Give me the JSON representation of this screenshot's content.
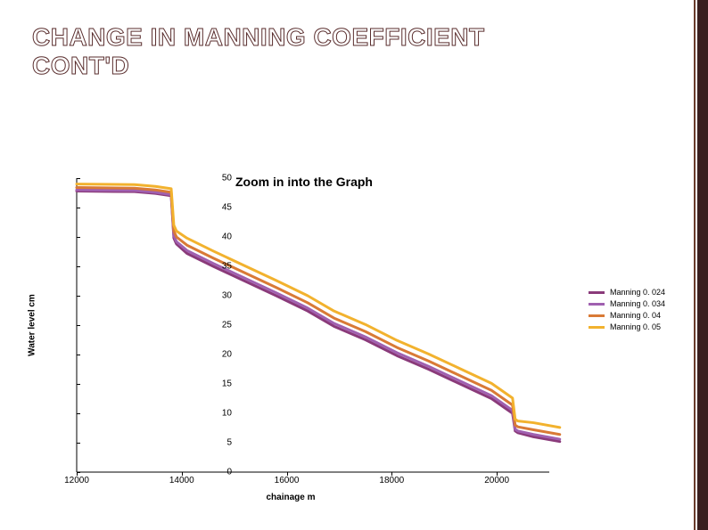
{
  "title_line1": "CHANGE IN MANNING COEFFICIENT",
  "title_line2": "CONT'D",
  "stripe": {
    "dark": "#3a1f1f",
    "thin": "#6a3b2b"
  },
  "chart": {
    "type": "line",
    "zoom_label": "Zoom in into the Graph",
    "xlabel": "chainage  m",
    "ylabel": "Water level  cm",
    "xlim": [
      12000,
      21000
    ],
    "ylim": [
      0,
      50
    ],
    "ytick_step": 5,
    "xtick_step": 2000,
    "background_color": "#ffffff",
    "axis_color": "#000000",
    "tick_fontsize": 10,
    "label_fontsize": 10,
    "zoom_fontsize": 14,
    "line_width": 3,
    "series": [
      {
        "name": "Manning 0. 024",
        "color": "#8a3a7a",
        "x": [
          12000,
          13100,
          13500,
          13800,
          13850,
          13900,
          14100,
          14600,
          15200,
          15800,
          16400,
          16900,
          17500,
          18100,
          18700,
          19300,
          19900,
          20300,
          20350,
          20400,
          20700,
          21200
        ],
        "y": [
          47.8,
          47.7,
          47.4,
          47.0,
          39.8,
          38.8,
          37.2,
          35.0,
          32.5,
          30.0,
          27.4,
          24.8,
          22.5,
          19.8,
          17.5,
          15.0,
          12.5,
          10.0,
          7.0,
          6.7,
          6.0,
          5.2
        ]
      },
      {
        "name": "Manning 0. 034",
        "color": "#a060b0",
        "x": [
          12000,
          13100,
          13500,
          13800,
          13850,
          13900,
          14100,
          14600,
          15200,
          15800,
          16400,
          16900,
          17500,
          18100,
          18700,
          19300,
          19900,
          20300,
          20350,
          20400,
          20700,
          21200
        ],
        "y": [
          48.0,
          47.9,
          47.6,
          47.2,
          40.2,
          39.2,
          37.7,
          35.5,
          33.0,
          30.5,
          27.9,
          25.3,
          23.0,
          20.3,
          18.0,
          15.5,
          13.0,
          10.5,
          7.3,
          7.0,
          6.4,
          5.6
        ]
      },
      {
        "name": "Manning 0. 04",
        "color": "#d97a36",
        "x": [
          12000,
          13100,
          13500,
          13800,
          13850,
          13900,
          14100,
          14600,
          15200,
          15800,
          16400,
          16900,
          17500,
          18100,
          18700,
          19300,
          19900,
          20300,
          20350,
          20400,
          20700,
          21200
        ],
        "y": [
          48.4,
          48.3,
          48.0,
          47.6,
          41.0,
          40.0,
          38.6,
          36.4,
          33.9,
          31.4,
          28.8,
          26.2,
          23.9,
          21.2,
          18.9,
          16.4,
          13.9,
          11.4,
          8.0,
          7.7,
          7.2,
          6.4
        ]
      },
      {
        "name": "Manning 0. 05",
        "color": "#f2b22e",
        "x": [
          12000,
          13100,
          13500,
          13800,
          13850,
          13900,
          14100,
          14600,
          15200,
          15800,
          16400,
          16900,
          17500,
          18100,
          18700,
          19300,
          19900,
          20300,
          20350,
          20400,
          20700,
          21200
        ],
        "y": [
          49.0,
          48.9,
          48.6,
          48.2,
          42.0,
          41.0,
          39.8,
          37.6,
          35.1,
          32.6,
          30.0,
          27.4,
          25.1,
          22.4,
          20.1,
          17.6,
          15.1,
          12.6,
          9.0,
          8.7,
          8.4,
          7.6
        ]
      }
    ],
    "legend_items": [
      {
        "label": "Manning 0. 024",
        "color": "#8a3a7a"
      },
      {
        "label": "Manning 0. 034",
        "color": "#a060b0"
      },
      {
        "label": "Manning 0. 04",
        "color": "#d97a36"
      },
      {
        "label": "Manning 0. 05",
        "color": "#f2b22e"
      }
    ]
  }
}
